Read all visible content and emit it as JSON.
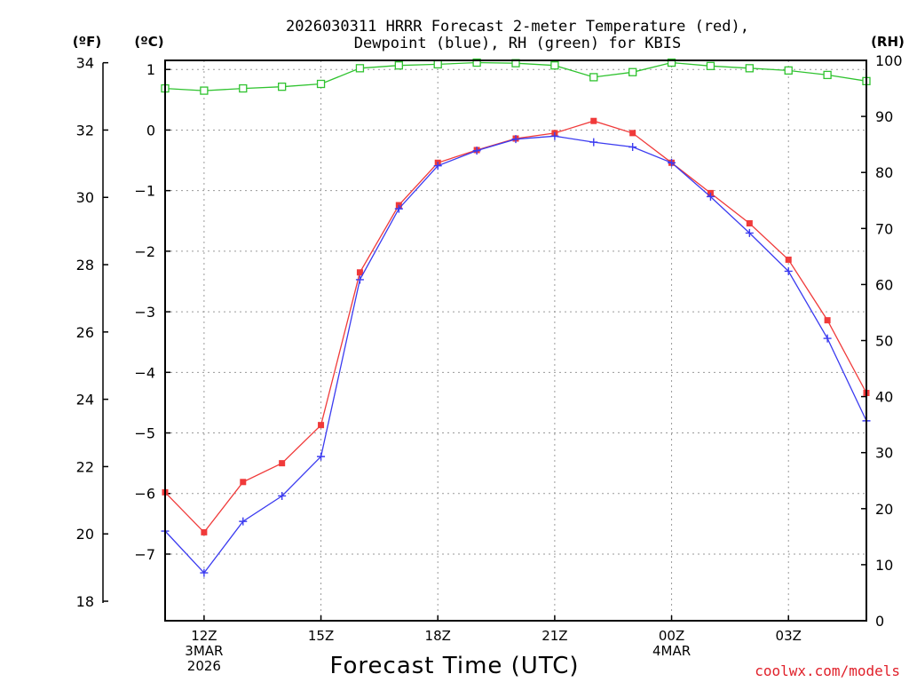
{
  "chart_data": {
    "type": "line",
    "title_lines": [
      "2026030311 HRRR Forecast 2-meter Temperature (red),",
      "Dewpoint (blue), RH (green) for KBIS"
    ],
    "units": {
      "fahrenheit": "(ºF)",
      "celsius": "(ºC)",
      "rh": "(RH)"
    },
    "xlabel": "Forecast Time (UTC)",
    "credit": "coolwx.com/models",
    "x": [
      11,
      12,
      13,
      14,
      15,
      16,
      17,
      18,
      19,
      20,
      21,
      22,
      23,
      24,
      25,
      26,
      27,
      28,
      29
    ],
    "xlim": [
      11,
      29
    ],
    "x_ticks": [
      {
        "x": 12,
        "lines": [
          "12Z",
          "3MAR",
          "2026"
        ]
      },
      {
        "x": 15,
        "lines": [
          "15Z"
        ]
      },
      {
        "x": 18,
        "lines": [
          "18Z"
        ]
      },
      {
        "x": 21,
        "lines": [
          "21Z"
        ]
      },
      {
        "x": 24,
        "lines": [
          "00Z",
          "4MAR"
        ]
      },
      {
        "x": 27,
        "lines": [
          "03Z"
        ]
      }
    ],
    "temp_axis_c": {
      "lim": [
        -8.1,
        1.15
      ],
      "ticks": [
        1,
        0,
        -1,
        -2,
        -3,
        -4,
        -5,
        -6,
        -7
      ],
      "labels": [
        "1",
        "0",
        "−1",
        "−2",
        "−3",
        "−4",
        "−5",
        "−6",
        "−7"
      ]
    },
    "temp_axis_f": {
      "ticks": [
        34,
        32,
        30,
        28,
        26,
        24,
        22,
        20,
        18
      ],
      "labels": [
        "34",
        "32",
        "30",
        "28",
        "26",
        "24",
        "22",
        "20",
        "18"
      ]
    },
    "rh_axis": {
      "lim": [
        0,
        100
      ],
      "ticks": [
        0,
        10,
        20,
        30,
        40,
        50,
        60,
        70,
        80,
        90,
        100
      ],
      "labels": [
        "0",
        "10",
        "20",
        "30",
        "40",
        "50",
        "60",
        "70",
        "80",
        "90",
        "100"
      ]
    },
    "series": [
      {
        "name": "Temperature",
        "color": "#f03a3a",
        "marker": "filled-square",
        "axis": "celsius",
        "values": [
          -5.98,
          -6.64,
          -5.81,
          -5.5,
          -4.87,
          -2.35,
          -1.24,
          -0.54,
          -0.33,
          -0.14,
          -0.05,
          0.15,
          -0.05,
          -0.54,
          -1.04,
          -1.54,
          -2.14,
          -3.14,
          -4.34
        ]
      },
      {
        "name": "Dewpoint",
        "color": "#3b3bf0",
        "marker": "plus",
        "axis": "celsius",
        "values": [
          -6.62,
          -7.31,
          -6.46,
          -6.04,
          -5.39,
          -2.47,
          -1.3,
          -0.59,
          -0.34,
          -0.15,
          -0.1,
          -0.2,
          -0.28,
          -0.54,
          -1.1,
          -1.7,
          -2.33,
          -3.44,
          -4.8
        ]
      },
      {
        "name": "RH",
        "color": "#2fc32f",
        "marker": "open-square",
        "axis": "rh",
        "values": [
          95,
          94.6,
          95,
          95.3,
          95.8,
          98.6,
          99.1,
          99.3,
          99.6,
          99.5,
          99.1,
          97,
          97.9,
          99.6,
          99,
          98.6,
          98.2,
          97.4,
          96.3
        ]
      }
    ]
  }
}
